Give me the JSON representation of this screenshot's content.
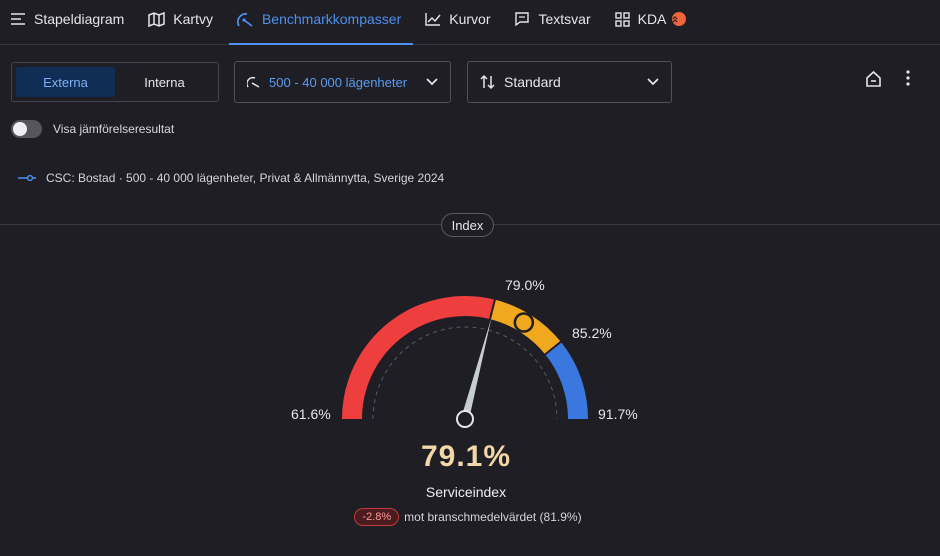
{
  "nav": {
    "tabs": [
      {
        "label": "Stapeldiagram",
        "icon": "lines-icon"
      },
      {
        "label": "Kartvy",
        "icon": "map-icon"
      },
      {
        "label": "Benchmarkkompasser",
        "icon": "compass-icon",
        "active": true
      },
      {
        "label": "Kurvor",
        "icon": "line-chart-icon"
      },
      {
        "label": "Textsvar",
        "icon": "chat-icon"
      },
      {
        "label": "KDA",
        "icon": "grid-icon"
      }
    ],
    "accent": "#4d90f0"
  },
  "filters": {
    "segment": [
      "Externa",
      "Interna"
    ],
    "segment_selected": "Externa",
    "size_dropdown": "500 - 40 000 lägenheter",
    "sort_dropdown": "Standard"
  },
  "toggle": {
    "label": "Visa jämförelseresultat",
    "on": false
  },
  "legend": {
    "text": "CSC: Bostad · 500 - 40 000 lägenheter, Privat & Allmännytta, Sverige 2024"
  },
  "section_label": "Index",
  "gauge": {
    "min": 61.6,
    "max": 91.7,
    "thresholds": [
      79.0,
      85.2
    ],
    "value": 79.1,
    "benchmark_marker": 81.9,
    "min_label": "61.6%",
    "max_label": "91.7%",
    "threshold_labels": [
      "79.0%",
      "85.2%"
    ],
    "value_label": "79.1%",
    "metric_name": "Serviceindex",
    "delta_badge": "-2.8%",
    "delta_text": "mot branschmedelvärdet (81.9%)",
    "colors": {
      "low": "#ef3e3e",
      "mid": "#f0a81e",
      "high": "#3a78e0"
    }
  }
}
